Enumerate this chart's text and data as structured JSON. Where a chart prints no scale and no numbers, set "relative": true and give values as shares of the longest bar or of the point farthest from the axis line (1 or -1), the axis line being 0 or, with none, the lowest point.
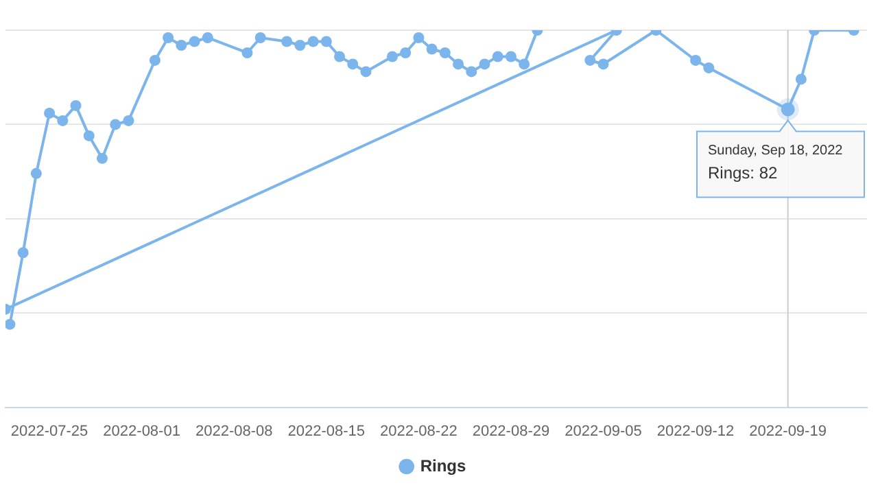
{
  "chart_data": {
    "type": "line",
    "relative": true,
    "series": [
      {
        "name": "Rings",
        "color": "#7cb5ec",
        "x": [
          "2022-07-22",
          "2022-07-23",
          "2022-07-24",
          "2022-07-25",
          "2022-07-26",
          "2022-07-27",
          "2022-07-28",
          "2022-07-29",
          "2022-07-30",
          "2022-07-31",
          "2022-08-02",
          "2022-08-03",
          "2022-08-04",
          "2022-08-05",
          "2022-08-06",
          "2022-08-09",
          "2022-08-10",
          "2022-08-12",
          "2022-08-13",
          "2022-08-14",
          "2022-08-15",
          "2022-08-16",
          "2022-08-17",
          "2022-08-18",
          "2022-08-20",
          "2022-08-21",
          "2022-08-22",
          "2022-08-23",
          "2022-08-24",
          "2022-08-25",
          "2022-08-26",
          "2022-08-27",
          "2022-08-28",
          "2022-08-29",
          "2022-08-30",
          "2022-08-31"
        ],
        "values": [
          0.22,
          0.41,
          0.62,
          0.78,
          0.76,
          0.8,
          0.72,
          0.66,
          0.75,
          0.76,
          0.92,
          0.98,
          0.96,
          0.97,
          0.98,
          0.94,
          0.98,
          0.97,
          0.96,
          0.97,
          0.97,
          0.93,
          0.91,
          0.89,
          0.93,
          0.94,
          0.98,
          0.95,
          0.94,
          0.91,
          0.89,
          0.91,
          0.93,
          0.93,
          0.91,
          1.0
        ]
      },
      {
        "color": "#7cb5ec",
        "x": [
          "2022-07-21T16:00",
          "2022-09-06",
          "2022-09-04",
          "2022-09-05",
          "2022-09-09",
          "2022-09-12",
          "2022-09-13",
          "2022-09-19",
          "2022-09-20",
          "2022-09-21",
          "2022-09-24"
        ],
        "values": [
          0.26,
          1.0,
          0.92,
          0.91,
          1.0,
          0.92,
          0.9,
          0.79,
          0.87,
          1.0,
          1.0
        ]
      }
    ],
    "xlim": [
      "2022-07-21T16:00",
      "2022-09-25"
    ],
    "xticks": [
      "2022-07-25",
      "2022-08-01",
      "2022-08-08",
      "2022-08-15",
      "2022-08-22",
      "2022-08-29",
      "2022-09-05",
      "2022-09-12",
      "2022-09-19"
    ],
    "grid": "y",
    "marker": "circle",
    "line_style": "solid",
    "legend": "bottom",
    "ref_lines": [
      {
        "axis": "x",
        "value": "2022-09-19",
        "color": "#cccccc"
      }
    ],
    "annotations": [
      {
        "text": "Sunday, Sep 18, 2022",
        "x": "2022-09-19",
        "y": 0.79
      },
      "Rings: 82"
    ]
  }
}
